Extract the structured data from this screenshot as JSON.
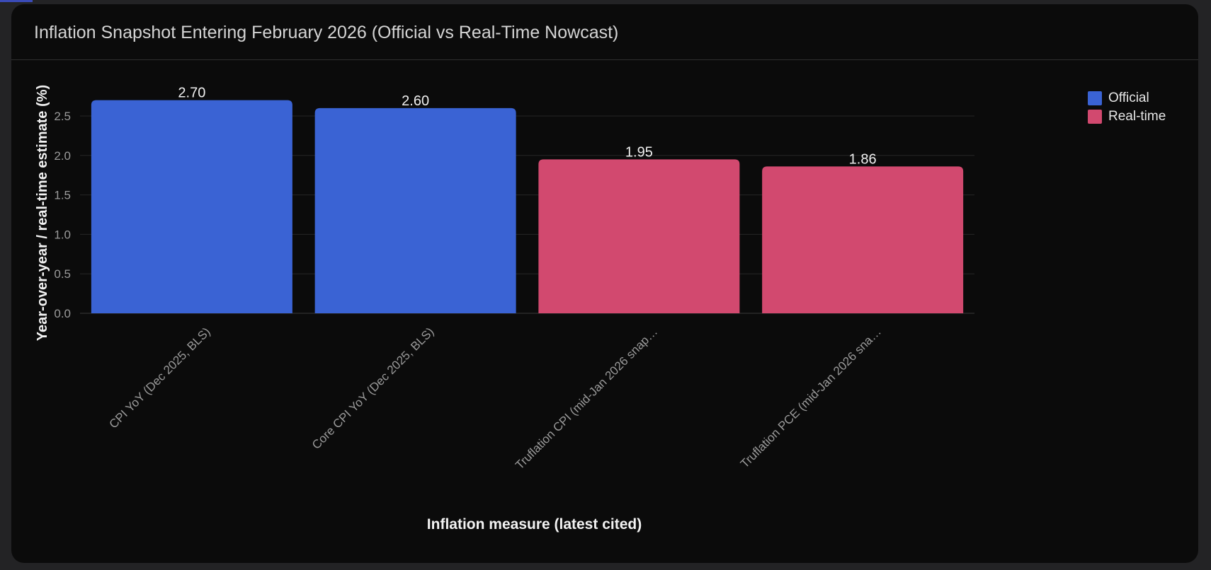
{
  "chart_data": {
    "type": "bar",
    "title": "Inflation Snapshot Entering February 2026 (Official vs Real-Time Nowcast)",
    "xlabel": "Inflation measure (latest cited)",
    "ylabel": "Year-over-year / real-time estimate (%)",
    "categories": [
      "CPI YoY (Dec 2025, BLS)",
      "Core CPI YoY (Dec 2025, BLS)",
      "Truflation CPI (mid-Jan 2026 snap…",
      "Truflation PCE (mid-Jan 2026 sna…"
    ],
    "values": [
      2.7,
      2.6,
      1.95,
      1.86
    ],
    "value_labels": [
      "2.70",
      "2.60",
      "1.95",
      "1.86"
    ],
    "groups": [
      "Official",
      "Official",
      "Real-time",
      "Real-time"
    ],
    "yticks": [
      "0.0",
      "0.5",
      "1.0",
      "1.5",
      "2.0",
      "2.5"
    ],
    "ylim": [
      0,
      2.85
    ],
    "grid": true,
    "legend": {
      "placement": "top-right",
      "entries": [
        {
          "name": "Official",
          "color": "#3a63d4"
        },
        {
          "name": "Real-time",
          "color": "#d2496f"
        }
      ]
    }
  }
}
